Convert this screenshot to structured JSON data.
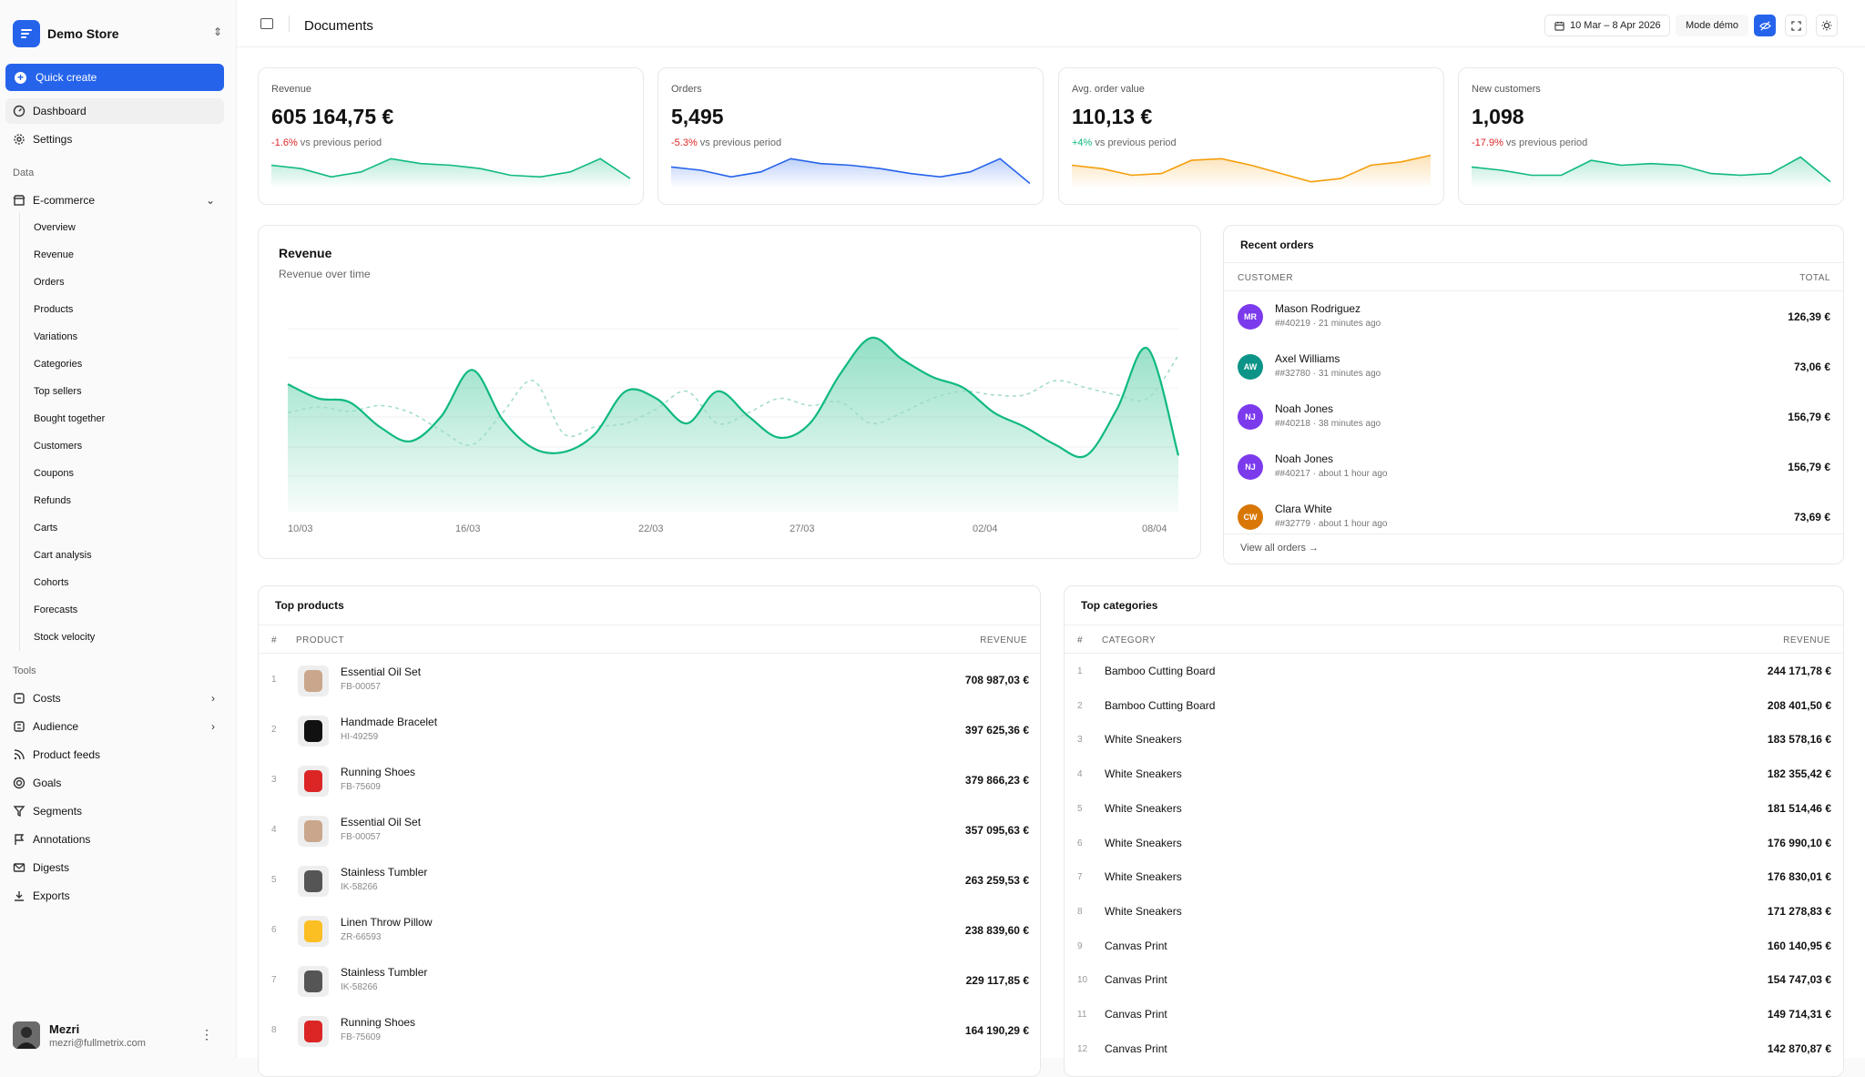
{
  "store": {
    "name": "Demo Store"
  },
  "quick_create": "Quick create",
  "nav_main": [
    {
      "label": "Dashboard",
      "icon": "dashboard-icon"
    },
    {
      "label": "Settings",
      "icon": "gear-icon"
    }
  ],
  "sections": {
    "data": "Data",
    "tools": "Tools"
  },
  "ecommerce": {
    "label": "E-commerce",
    "items": [
      "Overview",
      "Revenue",
      "Orders",
      "Products",
      "Variations",
      "Categories",
      "Top sellers",
      "Bought together",
      "Customers",
      "Coupons",
      "Refunds",
      "Carts",
      "Cart analysis",
      "Cohorts",
      "Forecasts",
      "Stock velocity"
    ]
  },
  "tools": [
    {
      "label": "Costs",
      "icon": "costs-icon",
      "expandable": true
    },
    {
      "label": "Audience",
      "icon": "audience-icon",
      "expandable": true
    },
    {
      "label": "Product feeds",
      "icon": "rss-icon"
    },
    {
      "label": "Goals",
      "icon": "target-icon"
    },
    {
      "label": "Segments",
      "icon": "filter-icon"
    },
    {
      "label": "Annotations",
      "icon": "flag-icon"
    },
    {
      "label": "Digests",
      "icon": "mail-icon"
    },
    {
      "label": "Exports",
      "icon": "download-icon"
    }
  ],
  "user": {
    "name": "Mezri",
    "email": "mezri@fullmetrix.com"
  },
  "topbar": {
    "title": "Documents",
    "date_range": "10 Mar – 8 Apr 2026",
    "demo_mode": "Mode démo"
  },
  "kpis": [
    {
      "label": "Revenue",
      "value": "605 164,75 €",
      "delta": "-1.6%",
      "delta_suffix": " vs previous period",
      "trend": "neg",
      "color": "#10b981",
      "spark": [
        14,
        12,
        7,
        10,
        18,
        15,
        14,
        12,
        8,
        7,
        10,
        18,
        6
      ]
    },
    {
      "label": "Orders",
      "value": "5,495",
      "delta": "-5.3%",
      "delta_suffix": " vs previous period",
      "trend": "neg",
      "color": "#2563eb",
      "spark": [
        13,
        11,
        7,
        10,
        18,
        15,
        14,
        12,
        9,
        7,
        10,
        18,
        3
      ]
    },
    {
      "label": "Avg. order value",
      "value": "110,13 €",
      "delta": "+4%",
      "delta_suffix": " vs previous period",
      "trend": "pos",
      "color": "#f59e0b",
      "spark": [
        14,
        12,
        8,
        9,
        17,
        18,
        14,
        9,
        4,
        6,
        14,
        16,
        20
      ]
    },
    {
      "label": "New customers",
      "value": "1,098",
      "delta": "-17.9%",
      "delta_suffix": " vs previous period",
      "trend": "neg",
      "color": "#10b981",
      "spark": [
        13,
        11,
        8,
        8,
        17,
        14,
        15,
        14,
        9,
        8,
        9,
        19,
        4
      ]
    }
  ],
  "revenue_chart": {
    "title": "Revenue",
    "subtitle": "Revenue over time",
    "x_labels": [
      "10/03",
      "16/03",
      "22/03",
      "27/03",
      "02/04",
      "08/04"
    ],
    "ylim": [
      0,
      30000
    ]
  },
  "chart_data": {
    "type": "area",
    "x": [
      "10/03",
      "11/03",
      "12/03",
      "13/03",
      "14/03",
      "15/03",
      "16/03",
      "17/03",
      "18/03",
      "19/03",
      "20/03",
      "21/03",
      "22/03",
      "23/03",
      "24/03",
      "25/03",
      "26/03",
      "27/03",
      "28/03",
      "29/03",
      "30/03",
      "31/03",
      "01/04",
      "02/04",
      "03/04",
      "04/04",
      "05/04",
      "06/04",
      "07/04",
      "08/04"
    ],
    "series": [
      {
        "values": [
          18000,
          16000,
          15500,
          12000,
          10000,
          13500,
          20000,
          13000,
          9000,
          8500,
          11000,
          17000,
          16000,
          12500,
          17000,
          13500,
          10500,
          12500,
          19500,
          24500,
          21500,
          19000,
          17500,
          14000,
          12000,
          9500,
          8000,
          14500,
          23000,
          8000
        ]
      },
      {
        "values": [
          14000,
          14800,
          14200,
          15000,
          14000,
          11500,
          9500,
          14000,
          18500,
          11000,
          12000,
          12500,
          14500,
          17000,
          12500,
          14000,
          16000,
          15000,
          15500,
          12500,
          14000,
          16000,
          17000,
          16500,
          16500,
          18500,
          17500,
          16500,
          16000,
          22000
        ]
      }
    ]
  },
  "recent_orders": {
    "title": "Recent orders",
    "col_customer": "CUSTOMER",
    "col_total": "TOTAL",
    "rows": [
      {
        "initials": "MR",
        "color": "#7c3aed",
        "name": "Mason Rodriguez",
        "meta": "##40219 · 21 minutes ago",
        "total": "126,39 €"
      },
      {
        "initials": "AW",
        "color": "#0d9488",
        "name": "Axel Williams",
        "meta": "##32780 · 31 minutes ago",
        "total": "73,06 €"
      },
      {
        "initials": "NJ",
        "color": "#7c3aed",
        "name": "Noah Jones",
        "meta": "##40218 · 38 minutes ago",
        "total": "156,79 €"
      },
      {
        "initials": "NJ",
        "color": "#7c3aed",
        "name": "Noah Jones",
        "meta": "##40217 · about 1 hour ago",
        "total": "156,79 €"
      },
      {
        "initials": "CW",
        "color": "#d97706",
        "name": "Clara White",
        "meta": "##32779 · about 1 hour ago",
        "total": "73,69 €"
      }
    ],
    "view_all": "View all orders →"
  },
  "top_products": {
    "title": "Top products",
    "col_num": "#",
    "col_product": "PRODUCT",
    "col_revenue": "REVENUE",
    "rows": [
      {
        "n": "1",
        "name": "Essential Oil Set",
        "sku": "FB-00057",
        "revenue": "708 987,03 €",
        "thumb": "#c9a68c"
      },
      {
        "n": "2",
        "name": "Handmade Bracelet",
        "sku": "HI-49259",
        "revenue": "397 625,36 €",
        "thumb": "#111111"
      },
      {
        "n": "3",
        "name": "Running Shoes",
        "sku": "FB-75609",
        "revenue": "379 866,23 €",
        "thumb": "#dc2626"
      },
      {
        "n": "4",
        "name": "Essential Oil Set",
        "sku": "FB-00057",
        "revenue": "357 095,63 €",
        "thumb": "#c9a68c"
      },
      {
        "n": "5",
        "name": "Stainless Tumbler",
        "sku": "IK-58266",
        "revenue": "263 259,53 €",
        "thumb": "#555555"
      },
      {
        "n": "6",
        "name": "Linen Throw Pillow",
        "sku": "ZR-66593",
        "revenue": "238 839,60 €",
        "thumb": "#fbbf24"
      },
      {
        "n": "7",
        "name": "Stainless Tumbler",
        "sku": "IK-58266",
        "revenue": "229 117,85 €",
        "thumb": "#555555"
      },
      {
        "n": "8",
        "name": "Running Shoes",
        "sku": "FB-75609",
        "revenue": "164 190,29 €",
        "thumb": "#dc2626"
      }
    ]
  },
  "top_categories": {
    "title": "Top categories",
    "col_num": "#",
    "col_category": "CATEGORY",
    "col_revenue": "REVENUE",
    "rows": [
      {
        "n": "1",
        "name": "Bamboo Cutting Board",
        "revenue": "244 171,78 €"
      },
      {
        "n": "2",
        "name": "Bamboo Cutting Board",
        "revenue": "208 401,50 €"
      },
      {
        "n": "3",
        "name": "White Sneakers",
        "revenue": "183 578,16 €"
      },
      {
        "n": "4",
        "name": "White Sneakers",
        "revenue": "182 355,42 €"
      },
      {
        "n": "5",
        "name": "White Sneakers",
        "revenue": "181 514,46 €"
      },
      {
        "n": "6",
        "name": "White Sneakers",
        "revenue": "176 990,10 €"
      },
      {
        "n": "7",
        "name": "White Sneakers",
        "revenue": "176 830,01 €"
      },
      {
        "n": "8",
        "name": "White Sneakers",
        "revenue": "171 278,83 €"
      },
      {
        "n": "9",
        "name": "Canvas Print",
        "revenue": "160 140,95 €"
      },
      {
        "n": "10",
        "name": "Canvas Print",
        "revenue": "154 747,03 €"
      },
      {
        "n": "11",
        "name": "Canvas Print",
        "revenue": "149 714,31 €"
      },
      {
        "n": "12",
        "name": "Canvas Print",
        "revenue": "142 870,87 €"
      }
    ]
  }
}
